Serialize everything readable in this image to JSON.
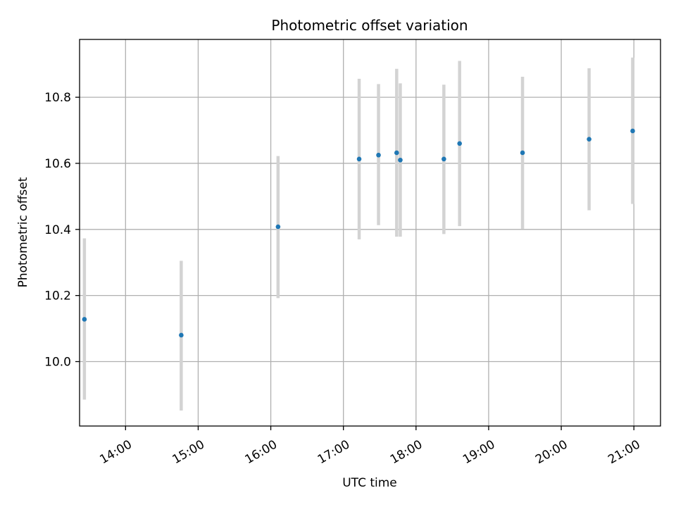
{
  "chart_data": {
    "type": "scatter",
    "title": "Photometric offset variation",
    "xlabel": "UTC time",
    "ylabel": "Photometric offset",
    "x_tick_labels": [
      "14:00",
      "15:00",
      "16:00",
      "17:00",
      "18:00",
      "19:00",
      "20:00",
      "21:00"
    ],
    "y_tick_labels": [
      "10.0",
      "10.2",
      "10.4",
      "10.6",
      "10.8"
    ],
    "xlim": [
      "13:22",
      "21:22"
    ],
    "ylim": [
      9.805,
      10.975
    ],
    "grid": true,
    "point_color": "#1f77b4",
    "errorbar_color": "#d3d3d3",
    "points": [
      {
        "x": "13:26",
        "y": 10.128,
        "ylow": 9.885,
        "yhigh": 10.373
      },
      {
        "x": "14:46",
        "y": 10.08,
        "ylow": 9.852,
        "yhigh": 10.305
      },
      {
        "x": "16:06",
        "y": 10.408,
        "ylow": 10.192,
        "yhigh": 10.622
      },
      {
        "x": "17:13",
        "y": 10.613,
        "ylow": 10.37,
        "yhigh": 10.856
      },
      {
        "x": "17:29",
        "y": 10.625,
        "ylow": 10.413,
        "yhigh": 10.84
      },
      {
        "x": "17:44",
        "y": 10.632,
        "ylow": 10.378,
        "yhigh": 10.886
      },
      {
        "x": "17:47",
        "y": 10.61,
        "ylow": 10.378,
        "yhigh": 10.842
      },
      {
        "x": "18:23",
        "y": 10.613,
        "ylow": 10.386,
        "yhigh": 10.838
      },
      {
        "x": "18:36",
        "y": 10.66,
        "ylow": 10.41,
        "yhigh": 10.91
      },
      {
        "x": "19:28",
        "y": 10.632,
        "ylow": 10.402,
        "yhigh": 10.862
      },
      {
        "x": "20:23",
        "y": 10.673,
        "ylow": 10.458,
        "yhigh": 10.888
      },
      {
        "x": "20:59",
        "y": 10.698,
        "ylow": 10.477,
        "yhigh": 10.92
      }
    ]
  }
}
